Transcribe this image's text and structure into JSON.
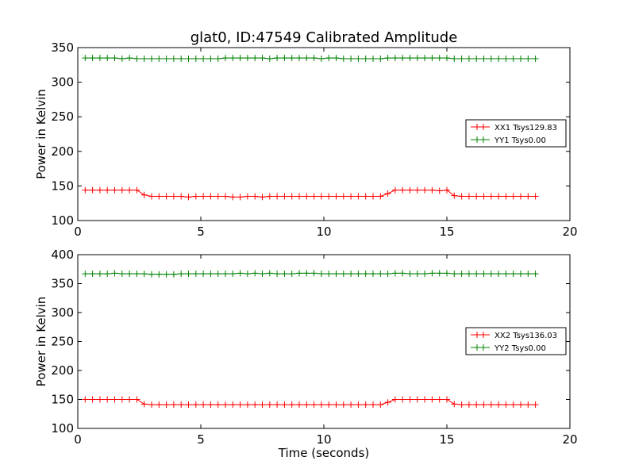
{
  "chart_data": [
    {
      "type": "line",
      "title": "glat0, ID:47549 Calibrated Amplitude",
      "xlabel": "",
      "ylabel": "Power in Kelvin",
      "xlim": [
        0,
        20
      ],
      "ylim": [
        100,
        350
      ],
      "xticks": [
        "0",
        "5",
        "10",
        "15",
        "20"
      ],
      "yticks": [
        "100",
        "150",
        "200",
        "250",
        "300",
        "350"
      ],
      "legend_position": "right",
      "series": [
        {
          "name": "XX1 Tsys129.83",
          "color": "#ff0000",
          "x": [
            0.3,
            0.6,
            0.9,
            1.2,
            1.5,
            1.8,
            2.1,
            2.4,
            2.7,
            3.0,
            3.3,
            3.6,
            3.9,
            4.2,
            4.5,
            4.8,
            5.1,
            5.4,
            5.7,
            6.0,
            6.3,
            6.6,
            6.9,
            7.2,
            7.5,
            7.8,
            8.1,
            8.4,
            8.7,
            9.0,
            9.3,
            9.6,
            9.9,
            10.2,
            10.5,
            10.8,
            11.1,
            11.4,
            11.7,
            12.0,
            12.3,
            12.6,
            12.9,
            13.2,
            13.5,
            13.8,
            14.1,
            14.4,
            14.7,
            15.0,
            15.3,
            15.6,
            15.9,
            16.2,
            16.5,
            16.8,
            17.1,
            17.4,
            17.7,
            18.0,
            18.3,
            18.6
          ],
          "y": [
            144,
            144,
            144,
            144,
            144,
            144,
            144,
            144,
            137,
            135,
            135,
            135,
            135,
            135,
            134,
            135,
            135,
            135,
            135,
            135,
            134,
            134,
            135,
            135,
            134,
            135,
            135,
            135,
            135,
            135,
            135,
            135,
            135,
            135,
            135,
            135,
            135,
            135,
            135,
            135,
            135,
            139,
            144,
            144,
            144,
            144,
            144,
            144,
            143,
            144,
            136,
            135,
            135,
            135,
            135,
            135,
            135,
            135,
            135,
            135,
            135,
            135
          ]
        },
        {
          "name": "YY1 Tsys0.00",
          "color": "#008000",
          "x": [
            0.3,
            0.6,
            0.9,
            1.2,
            1.5,
            1.8,
            2.1,
            2.4,
            2.7,
            3.0,
            3.3,
            3.6,
            3.9,
            4.2,
            4.5,
            4.8,
            5.1,
            5.4,
            5.7,
            6.0,
            6.3,
            6.6,
            6.9,
            7.2,
            7.5,
            7.8,
            8.1,
            8.4,
            8.7,
            9.0,
            9.3,
            9.6,
            9.9,
            10.2,
            10.5,
            10.8,
            11.1,
            11.4,
            11.7,
            12.0,
            12.3,
            12.6,
            12.9,
            13.2,
            13.5,
            13.8,
            14.1,
            14.4,
            14.7,
            15.0,
            15.3,
            15.6,
            15.9,
            16.2,
            16.5,
            16.8,
            17.1,
            17.4,
            17.7,
            18.0,
            18.3,
            18.6
          ],
          "y": [
            335,
            335,
            335,
            335,
            335,
            334,
            335,
            334,
            334,
            334,
            334,
            334,
            334,
            334,
            334,
            334,
            334,
            334,
            334,
            335,
            335,
            335,
            335,
            335,
            335,
            334,
            335,
            335,
            335,
            335,
            335,
            335,
            334,
            335,
            335,
            334,
            334,
            334,
            334,
            334,
            334,
            335,
            335,
            335,
            335,
            335,
            335,
            335,
            335,
            335,
            334,
            334,
            334,
            334,
            334,
            334,
            334,
            334,
            334,
            334,
            334,
            334
          ]
        }
      ]
    },
    {
      "type": "line",
      "title": "",
      "xlabel": "Time (seconds)",
      "ylabel": "Power in Kelvin",
      "xlim": [
        0,
        20
      ],
      "ylim": [
        100,
        400
      ],
      "xticks": [
        "0",
        "5",
        "10",
        "15",
        "20"
      ],
      "yticks": [
        "100",
        "150",
        "200",
        "250",
        "300",
        "350",
        "400"
      ],
      "legend_position": "right",
      "series": [
        {
          "name": "XX2 Tsys136.03",
          "color": "#ff0000",
          "x": [
            0.3,
            0.6,
            0.9,
            1.2,
            1.5,
            1.8,
            2.1,
            2.4,
            2.7,
            3.0,
            3.3,
            3.6,
            3.9,
            4.2,
            4.5,
            4.8,
            5.1,
            5.4,
            5.7,
            6.0,
            6.3,
            6.6,
            6.9,
            7.2,
            7.5,
            7.8,
            8.1,
            8.4,
            8.7,
            9.0,
            9.3,
            9.6,
            9.9,
            10.2,
            10.5,
            10.8,
            11.1,
            11.4,
            11.7,
            12.0,
            12.3,
            12.6,
            12.9,
            13.2,
            13.5,
            13.8,
            14.1,
            14.4,
            14.7,
            15.0,
            15.3,
            15.6,
            15.9,
            16.2,
            16.5,
            16.8,
            17.1,
            17.4,
            17.7,
            18.0,
            18.3,
            18.6
          ],
          "y": [
            150,
            150,
            150,
            150,
            150,
            150,
            150,
            150,
            142,
            141,
            141,
            141,
            141,
            141,
            141,
            141,
            141,
            141,
            141,
            141,
            141,
            141,
            141,
            141,
            141,
            141,
            141,
            141,
            141,
            141,
            141,
            141,
            141,
            141,
            141,
            141,
            141,
            141,
            141,
            141,
            141,
            145,
            150,
            150,
            150,
            150,
            150,
            150,
            150,
            150,
            142,
            141,
            141,
            141,
            141,
            141,
            141,
            141,
            141,
            141,
            141,
            141
          ]
        },
        {
          "name": "YY2 Tsys0.00",
          "color": "#008000",
          "x": [
            0.3,
            0.6,
            0.9,
            1.2,
            1.5,
            1.8,
            2.1,
            2.4,
            2.7,
            3.0,
            3.3,
            3.6,
            3.9,
            4.2,
            4.5,
            4.8,
            5.1,
            5.4,
            5.7,
            6.0,
            6.3,
            6.6,
            6.9,
            7.2,
            7.5,
            7.8,
            8.1,
            8.4,
            8.7,
            9.0,
            9.3,
            9.6,
            9.9,
            10.2,
            10.5,
            10.8,
            11.1,
            11.4,
            11.7,
            12.0,
            12.3,
            12.6,
            12.9,
            13.2,
            13.5,
            13.8,
            14.1,
            14.4,
            14.7,
            15.0,
            15.3,
            15.6,
            15.9,
            16.2,
            16.5,
            16.8,
            17.1,
            17.4,
            17.7,
            18.0,
            18.3,
            18.6
          ],
          "y": [
            367,
            367,
            367,
            367,
            368,
            367,
            367,
            367,
            367,
            366,
            366,
            366,
            366,
            367,
            367,
            367,
            367,
            367,
            367,
            367,
            367,
            368,
            367,
            368,
            367,
            368,
            367,
            367,
            367,
            368,
            368,
            368,
            367,
            367,
            367,
            367,
            367,
            367,
            367,
            367,
            367,
            367,
            368,
            368,
            367,
            367,
            367,
            368,
            368,
            368,
            367,
            367,
            367,
            367,
            367,
            367,
            367,
            367,
            367,
            367,
            367,
            367
          ]
        }
      ]
    }
  ]
}
